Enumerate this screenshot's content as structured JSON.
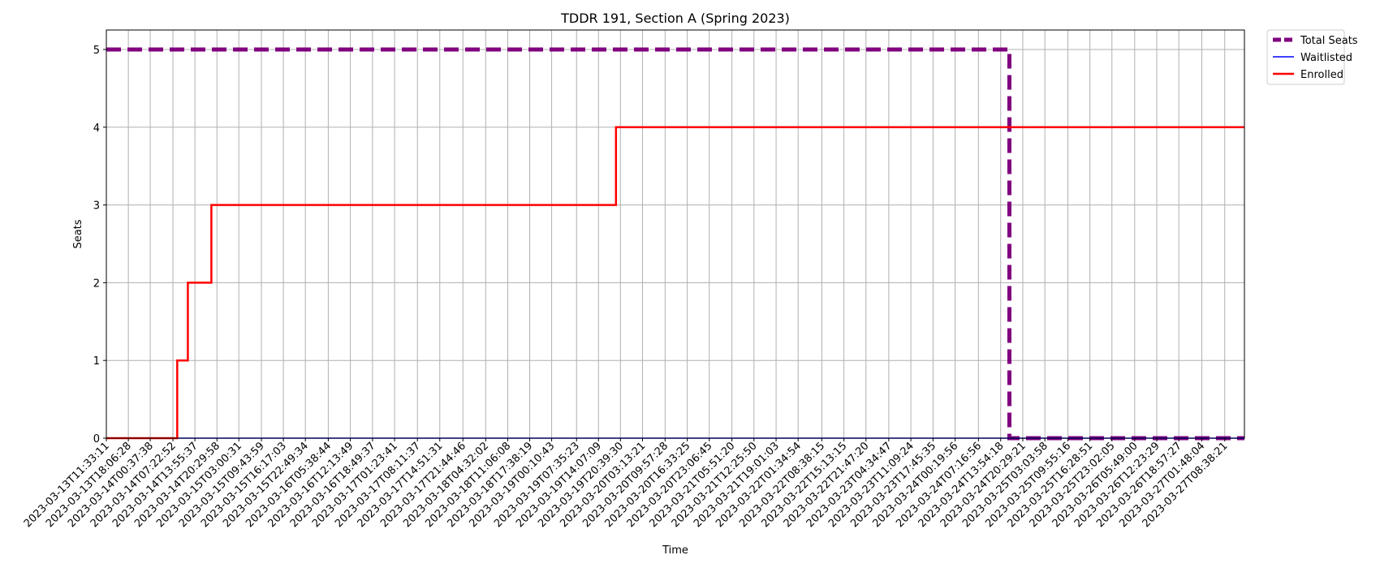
{
  "chart_data": {
    "type": "line",
    "title": "TDDR 191, Section A (Spring 2023)",
    "xlabel": "Time",
    "ylabel": "Seats",
    "ylim": [
      0,
      5.25
    ],
    "yticks": [
      0,
      1,
      2,
      3,
      4,
      5
    ],
    "grid": true,
    "legend_position": "outside top-right",
    "x_ticks": [
      "2023-03-13T11:33:11",
      "2023-03-13T18:06:28",
      "2023-03-14T00:37:38",
      "2023-03-14T07:22:52",
      "2023-03-14T13:55:37",
      "2023-03-14T20:29:58",
      "2023-03-15T03:00:31",
      "2023-03-15T09:43:59",
      "2023-03-15T16:17:03",
      "2023-03-15T22:49:34",
      "2023-03-16T05:38:44",
      "2023-03-16T12:13:49",
      "2023-03-16T18:49:37",
      "2023-03-17T01:23:41",
      "2023-03-17T08:11:37",
      "2023-03-17T14:51:31",
      "2023-03-17T21:44:46",
      "2023-03-18T04:32:02",
      "2023-03-18T11:06:08",
      "2023-03-18T17:38:19",
      "2023-03-19T00:10:43",
      "2023-03-19T07:35:23",
      "2023-03-19T14:07:09",
      "2023-03-19T20:39:30",
      "2023-03-20T03:13:21",
      "2023-03-20T09:57:28",
      "2023-03-20T16:33:25",
      "2023-03-20T23:06:45",
      "2023-03-21T05:51:20",
      "2023-03-21T12:25:50",
      "2023-03-21T19:01:03",
      "2023-03-22T01:34:54",
      "2023-03-22T08:38:15",
      "2023-03-22T15:13:15",
      "2023-03-22T21:47:20",
      "2023-03-23T04:34:47",
      "2023-03-23T11:09:24",
      "2023-03-23T17:45:35",
      "2023-03-24T00:19:56",
      "2023-03-24T07:16:56",
      "2023-03-24T13:54:18",
      "2023-03-24T20:29:21",
      "2023-03-25T03:03:58",
      "2023-03-25T09:55:16",
      "2023-03-25T16:28:51",
      "2023-03-25T23:02:05",
      "2023-03-26T05:49:00",
      "2023-03-26T12:23:29",
      "2023-03-26T18:57:27",
      "2023-03-27T01:48:04",
      "2023-03-27T08:38:21"
    ],
    "x_end": "2023-03-27T14:30:00",
    "series": [
      {
        "name": "Total Seats",
        "color": "#800080",
        "style": "dashed",
        "points": [
          {
            "x": "2023-03-13T11:33:11",
            "y": 5
          },
          {
            "x": "2023-03-24T16:30:00",
            "y": 5
          },
          {
            "x": "2023-03-24T16:30:00",
            "y": 0
          },
          {
            "x": "2023-03-27T14:30:00",
            "y": 0
          }
        ]
      },
      {
        "name": "Waitlisted",
        "color": "#0000ff",
        "style": "solid",
        "points": [
          {
            "x": "2023-03-13T11:33:11",
            "y": 0
          },
          {
            "x": "2023-03-27T14:30:00",
            "y": 0
          }
        ]
      },
      {
        "name": "Enrolled",
        "color": "#ff0000",
        "style": "step",
        "points": [
          {
            "x": "2023-03-13T11:33:11",
            "y": 0
          },
          {
            "x": "2023-03-14T08:40:00",
            "y": 1
          },
          {
            "x": "2023-03-14T11:50:00",
            "y": 2
          },
          {
            "x": "2023-03-14T18:50:00",
            "y": 3
          },
          {
            "x": "2023-03-19T19:20:00",
            "y": 4
          },
          {
            "x": "2023-03-27T14:30:00",
            "y": 4
          }
        ]
      }
    ]
  }
}
